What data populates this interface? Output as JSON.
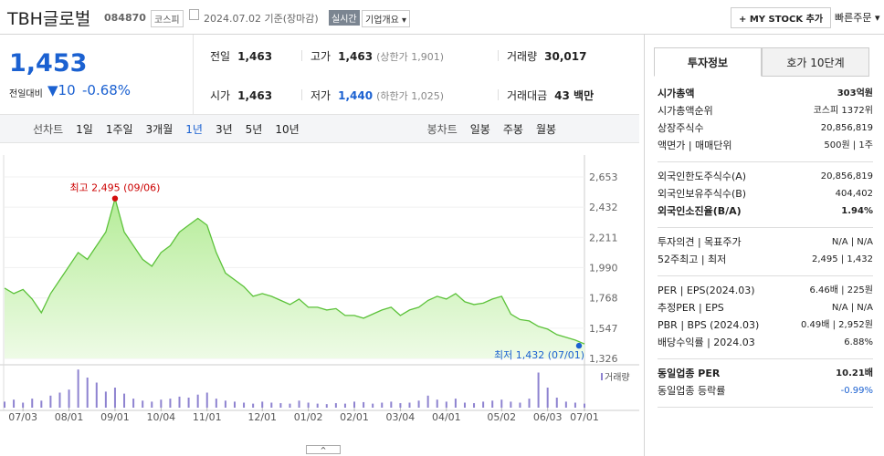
{
  "header": {
    "name": "TBH글로벌",
    "code": "084870",
    "market": "코스피",
    "date": "2024.07.02 기준(장마감)",
    "realtime": "실시간",
    "overview": "기업개요",
    "mystock": "+ MY STOCK 추가",
    "quick_order": "빠른주문"
  },
  "price": {
    "current": "1,453",
    "change_label": "전일대비",
    "change": "10",
    "change_rate": "-0.68%"
  },
  "quote": {
    "rows": [
      [
        {
          "label": "전일",
          "value": "1,463"
        },
        {
          "label": "고가",
          "value": "1,463",
          "extra": "(상한가 1,901)"
        },
        {
          "label": "거래량",
          "value": "30,017"
        }
      ],
      [
        {
          "label": "시가",
          "value": "1,463"
        },
        {
          "label": "저가",
          "value": "1,440",
          "extra": "(하한가 1,025)"
        },
        {
          "label": "거래대금",
          "value": "43 백만"
        }
      ]
    ]
  },
  "periods": {
    "line_label": "선차트",
    "line_options": [
      "1일",
      "1주일",
      "3개월",
      "1년",
      "3년",
      "5년",
      "10년"
    ],
    "candle_label": "봉차트",
    "candle_options": [
      "일봉",
      "주봉",
      "월봉"
    ]
  },
  "chart": {
    "type": "line",
    "color": "#5cc23a",
    "grid": true,
    "categories": [
      null,
      null,
      "07/03",
      null,
      null,
      null,
      null,
      "08/01",
      null,
      null,
      null,
      null,
      "09/01",
      null,
      null,
      null,
      null,
      "10/04",
      null,
      null,
      null,
      null,
      "11/01",
      null,
      null,
      null,
      null,
      null,
      "12/01",
      null,
      null,
      null,
      null,
      "01/02",
      null,
      null,
      null,
      null,
      "02/01",
      null,
      null,
      null,
      null,
      "03/04",
      null,
      null,
      null,
      null,
      "04/01",
      null,
      null,
      null,
      null,
      null,
      "05/02",
      null,
      null,
      null,
      null,
      "06/03",
      null,
      null,
      null,
      "07/01"
    ],
    "values": [
      1840,
      1800,
      1830,
      1760,
      1660,
      1800,
      1900,
      2000,
      2100,
      2050,
      2150,
      2250,
      2495,
      2250,
      2150,
      2050,
      2000,
      2100,
      2150,
      2250,
      2300,
      2350,
      2300,
      2100,
      1950,
      1900,
      1850,
      1780,
      1800,
      1780,
      1750,
      1720,
      1760,
      1700,
      1700,
      1680,
      1690,
      1640,
      1640,
      1620,
      1650,
      1680,
      1700,
      1640,
      1680,
      1700,
      1750,
      1780,
      1760,
      1800,
      1740,
      1720,
      1730,
      1760,
      1780,
      1650,
      1610,
      1600,
      1560,
      1540,
      1500,
      1480,
      1460,
      1432
    ],
    "ylim": [
      1326,
      2653
    ],
    "yticks": [
      {
        "value": 2653,
        "label": "2,653"
      },
      {
        "value": 2432,
        "label": "2,432"
      },
      {
        "value": 2211,
        "label": "2,211"
      },
      {
        "value": 1990,
        "label": "1,990"
      },
      {
        "value": 1768,
        "label": "1,768"
      },
      {
        "value": 1547,
        "label": "1,547"
      },
      {
        "value": 1326,
        "label": "1,326"
      }
    ],
    "high_label": "최고 2,495 (09/06)",
    "low_label": "최저 1,432 (07/01)",
    "volume": {
      "name": "거래량",
      "color": "#8e83d0",
      "ylim": [
        0,
        400000
      ],
      "values": [
        60000,
        80000,
        50000,
        90000,
        70000,
        120000,
        150000,
        180000,
        380000,
        300000,
        250000,
        160000,
        200000,
        140000,
        90000,
        70000,
        60000,
        80000,
        90000,
        110000,
        100000,
        130000,
        150000,
        90000,
        70000,
        60000,
        50000,
        40000,
        60000,
        50000,
        45000,
        40000,
        70000,
        50000,
        40000,
        35000,
        45000,
        40000,
        60000,
        55000,
        40000,
        50000,
        60000,
        45000,
        50000,
        70000,
        120000,
        80000,
        60000,
        90000,
        50000,
        45000,
        60000,
        70000,
        80000,
        60000,
        50000,
        90000,
        350000,
        200000,
        100000,
        60000,
        50000,
        40000
      ]
    }
  },
  "info": {
    "tabs": [
      "투자정보",
      "호가 10단계"
    ],
    "sections": [
      [
        {
          "label": "시가총액",
          "value": "303억원"
        },
        {
          "label": "시가총액순위",
          "value": "코스피 1372위"
        },
        {
          "label": "상장주식수",
          "value": "20,856,819"
        },
        {
          "label": "액면가 | 매매단위",
          "value": "500원 | 1주"
        }
      ],
      [
        {
          "label": "외국인한도주식수(A)",
          "value": "20,856,819"
        },
        {
          "label": "외국인보유주식수(B)",
          "value": "404,402"
        },
        {
          "label": "외국인소진율(B/A)",
          "value": "1.94%"
        }
      ],
      [
        {
          "label": "투자의견 | 목표주가",
          "value": "N/A | N/A"
        },
        {
          "label": "52주최고 | 최저",
          "value": "2,495 | 1,432"
        }
      ],
      [
        {
          "label": "PER | EPS(2024.03)",
          "value": "6.46배 | 225원"
        },
        {
          "label": "추정PER | EPS",
          "value": "N/A | N/A"
        },
        {
          "label": "PBR | BPS (2024.03)",
          "value": "0.49배 | 2,952원"
        },
        {
          "label": "배당수익률 | 2024.03",
          "value": "6.88%"
        }
      ],
      [
        {
          "label": "동일업종 PER",
          "value": "10.21배"
        },
        {
          "label": "동일업종 등락률",
          "value": "-0.99%"
        }
      ]
    ]
  }
}
